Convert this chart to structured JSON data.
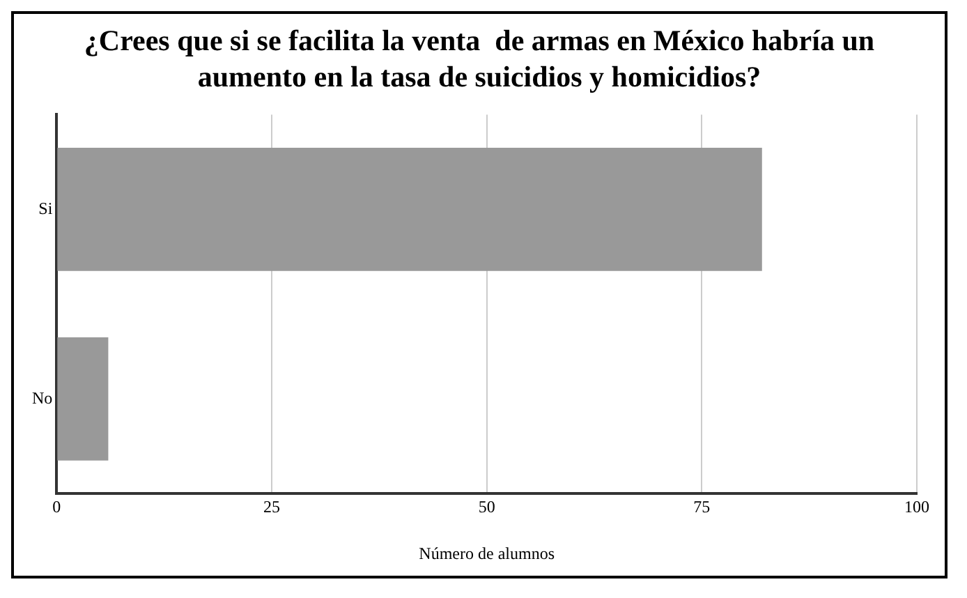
{
  "chart_data": {
    "type": "bar",
    "orientation": "horizontal",
    "title": "¿Crees que si se facilita la venta  de armas en México habría un aumento en la tasa de suicidios y homicidios?",
    "xlabel": "Número de alumnos",
    "categories": [
      "Si",
      "No"
    ],
    "values": [
      82,
      6
    ],
    "color": "#999999",
    "xlim": [
      0,
      100
    ],
    "xticks": [
      0,
      25,
      50,
      75,
      100
    ],
    "grid": "x"
  }
}
